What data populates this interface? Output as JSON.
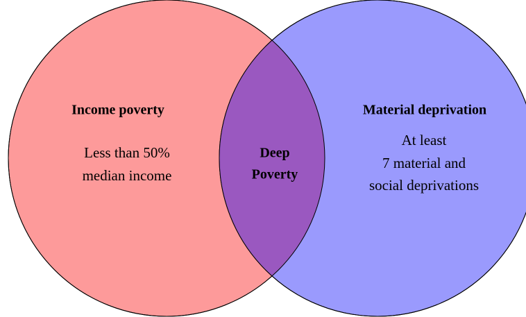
{
  "left": {
    "title": "Income poverty",
    "lines": [
      "Less than 50%",
      "median income"
    ]
  },
  "intersection": {
    "lines": [
      "Deep",
      "Poverty"
    ]
  },
  "right": {
    "title": "Material deprivation",
    "lines": [
      "At least",
      "7 material and",
      "social deprivations"
    ]
  }
}
